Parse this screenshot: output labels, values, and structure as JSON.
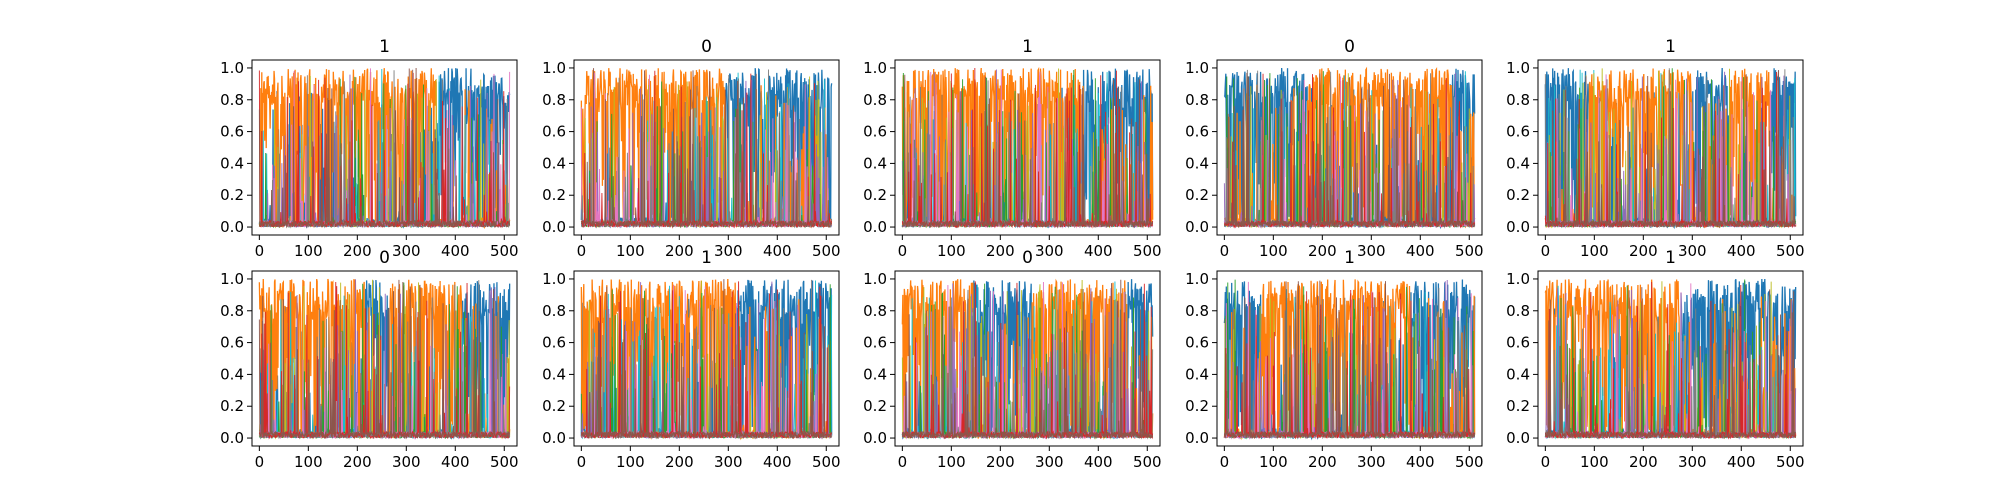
{
  "palette": {
    "blue": "#1f77b4",
    "orange": "#ff7f0e",
    "cyan": "#17becf",
    "olive": "#bcbd22",
    "green": "#2ca02c",
    "purple": "#9467bd",
    "pink": "#e377c2",
    "gray": "#7f7f7f",
    "red": "#d62728",
    "brown": "#8c564b"
  },
  "chart_data": [
    {
      "type": "line",
      "title": "1",
      "xlim": [
        -15,
        526
      ],
      "ylim": [
        -0.05,
        1.05
      ],
      "x_ticks": [
        "0",
        "100",
        "200",
        "300",
        "400",
        "500"
      ],
      "y_ticks": [
        "0.0",
        "0.2",
        "0.4",
        "0.6",
        "0.8",
        "1.0"
      ],
      "n_points": 512,
      "series": [
        {
          "color": "orange",
          "dominant_segments": [
            [
              0,
              362
            ]
          ]
        },
        {
          "color": "blue",
          "dominant_segments": [
            [
              362,
              512
            ]
          ]
        }
      ]
    },
    {
      "type": "line",
      "title": "0",
      "xlim": [
        -15,
        526
      ],
      "ylim": [
        -0.05,
        1.05
      ],
      "x_ticks": [
        "0",
        "100",
        "200",
        "300",
        "400",
        "500"
      ],
      "y_ticks": [
        "0.0",
        "0.2",
        "0.4",
        "0.6",
        "0.8",
        "1.0"
      ],
      "n_points": 512,
      "series": [
        {
          "color": "orange",
          "dominant_segments": [
            [
              0,
              295
            ]
          ]
        },
        {
          "color": "blue",
          "dominant_segments": [
            [
              295,
              512
            ]
          ]
        }
      ]
    },
    {
      "type": "line",
      "title": "1",
      "xlim": [
        -15,
        526
      ],
      "ylim": [
        -0.05,
        1.05
      ],
      "x_ticks": [
        "0",
        "100",
        "200",
        "300",
        "400",
        "500"
      ],
      "y_ticks": [
        "0.0",
        "0.2",
        "0.4",
        "0.6",
        "0.8",
        "1.0"
      ],
      "n_points": 512,
      "series": [
        {
          "color": "orange",
          "dominant_segments": [
            [
              0,
              370
            ]
          ]
        },
        {
          "color": "blue",
          "dominant_segments": [
            [
              370,
              512
            ]
          ]
        }
      ]
    },
    {
      "type": "line",
      "title": "0",
      "xlim": [
        -15,
        526
      ],
      "ylim": [
        -0.05,
        1.05
      ],
      "x_ticks": [
        "0",
        "100",
        "200",
        "300",
        "400",
        "500"
      ],
      "y_ticks": [
        "0.0",
        "0.2",
        "0.4",
        "0.6",
        "0.8",
        "1.0"
      ],
      "n_points": 512,
      "series": [
        {
          "color": "blue",
          "dominant_segments": [
            [
              0,
              170
            ],
            [
              465,
              512
            ]
          ]
        },
        {
          "color": "orange",
          "dominant_segments": [
            [
              170,
              465
            ]
          ]
        }
      ]
    },
    {
      "type": "line",
      "title": "1",
      "xlim": [
        -15,
        526
      ],
      "ylim": [
        -0.05,
        1.05
      ],
      "x_ticks": [
        "0",
        "100",
        "200",
        "300",
        "400",
        "500"
      ],
      "y_ticks": [
        "0.0",
        "0.2",
        "0.4",
        "0.6",
        "0.8",
        "1.0"
      ],
      "n_points": 512,
      "series": [
        {
          "color": "blue",
          "dominant_segments": [
            [
              0,
              90
            ],
            [
              300,
              375
            ],
            [
              460,
              512
            ]
          ]
        },
        {
          "color": "orange",
          "dominant_segments": [
            [
              90,
              300
            ],
            [
              375,
              460
            ]
          ]
        }
      ]
    },
    {
      "type": "line",
      "title": "0",
      "xlim": [
        -15,
        526
      ],
      "ylim": [
        -0.05,
        1.05
      ],
      "x_ticks": [
        "0",
        "100",
        "200",
        "300",
        "400",
        "500"
      ],
      "y_ticks": [
        "0.0",
        "0.2",
        "0.4",
        "0.6",
        "0.8",
        "1.0"
      ],
      "n_points": 512,
      "series": [
        {
          "color": "orange",
          "dominant_segments": [
            [
              0,
              215
            ],
            [
              265,
              415
            ]
          ]
        },
        {
          "color": "blue",
          "dominant_segments": [
            [
              215,
              265
            ],
            [
              415,
              512
            ]
          ]
        }
      ]
    },
    {
      "type": "line",
      "title": "1",
      "xlim": [
        -15,
        526
      ],
      "ylim": [
        -0.05,
        1.05
      ],
      "x_ticks": [
        "0",
        "100",
        "200",
        "300",
        "400",
        "500"
      ],
      "y_ticks": [
        "0.0",
        "0.2",
        "0.4",
        "0.6",
        "0.8",
        "1.0"
      ],
      "n_points": 512,
      "series": [
        {
          "color": "orange",
          "dominant_segments": [
            [
              0,
              315
            ]
          ]
        },
        {
          "color": "blue",
          "dominant_segments": [
            [
              315,
              512
            ]
          ]
        }
      ]
    },
    {
      "type": "line",
      "title": "0",
      "xlim": [
        -15,
        526
      ],
      "ylim": [
        -0.05,
        1.05
      ],
      "x_ticks": [
        "0",
        "100",
        "200",
        "300",
        "400",
        "500"
      ],
      "y_ticks": [
        "0.0",
        "0.2",
        "0.4",
        "0.6",
        "0.8",
        "1.0"
      ],
      "n_points": 512,
      "series": [
        {
          "color": "orange",
          "dominant_segments": [
            [
              0,
              145
            ],
            [
              265,
              460
            ]
          ]
        },
        {
          "color": "blue",
          "dominant_segments": [
            [
              145,
              265
            ],
            [
              460,
              512
            ]
          ]
        }
      ]
    },
    {
      "type": "line",
      "title": "1",
      "xlim": [
        -15,
        526
      ],
      "ylim": [
        -0.05,
        1.05
      ],
      "x_ticks": [
        "0",
        "100",
        "200",
        "300",
        "400",
        "500"
      ],
      "y_ticks": [
        "0.0",
        "0.2",
        "0.4",
        "0.6",
        "0.8",
        "1.0"
      ],
      "n_points": 512,
      "series": [
        {
          "color": "blue",
          "dominant_segments": [
            [
              0,
              75
            ],
            [
              380,
              512
            ]
          ]
        },
        {
          "color": "orange",
          "dominant_segments": [
            [
              75,
              380
            ]
          ]
        }
      ]
    },
    {
      "type": "line",
      "title": "1",
      "xlim": [
        -15,
        526
      ],
      "ylim": [
        -0.05,
        1.05
      ],
      "x_ticks": [
        "0",
        "100",
        "200",
        "300",
        "400",
        "500"
      ],
      "y_ticks": [
        "0.0",
        "0.2",
        "0.4",
        "0.6",
        "0.8",
        "1.0"
      ],
      "n_points": 512,
      "series": [
        {
          "color": "orange",
          "dominant_segments": [
            [
              0,
              275
            ]
          ]
        },
        {
          "color": "blue",
          "dominant_segments": [
            [
              275,
              512
            ]
          ]
        }
      ]
    }
  ]
}
